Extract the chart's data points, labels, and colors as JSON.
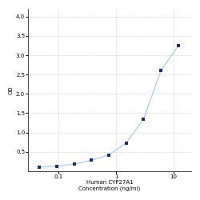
{
  "x_values": [
    0.047,
    0.094,
    0.188,
    0.375,
    0.75,
    1.5,
    3.0,
    6.0,
    12.0
  ],
  "y_values": [
    0.1,
    0.13,
    0.18,
    0.28,
    0.42,
    0.73,
    1.35,
    2.6,
    3.25
  ],
  "line_color": "#aacce8",
  "marker_color": "#1a2e6b",
  "marker_size": 3.5,
  "marker_style": "s",
  "line_width": 0.9,
  "xlabel_line1": "Human CYP27A1",
  "xlabel_line2": "Concentration (ng/ml)",
  "ylabel": "OD",
  "xlim_log": [
    0.03,
    20
  ],
  "ylim": [
    0,
    4.2
  ],
  "yticks": [
    0.5,
    1.0,
    1.5,
    2.0,
    2.5,
    3.0,
    3.5,
    4.0
  ],
  "xtick_positions": [
    0.1,
    1,
    10
  ],
  "xtick_labels": [
    "0.1",
    "1",
    "10"
  ],
  "grid_color": "#cccccc",
  "grid_style": "--",
  "grid_alpha": 0.8,
  "background_color": "#ffffff",
  "font_size_axis_label": 5.0,
  "font_size_tick": 5.0
}
